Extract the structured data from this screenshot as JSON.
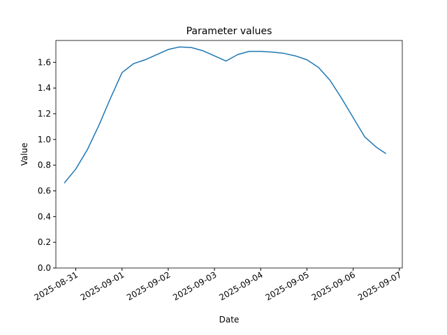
{
  "chart_data": {
    "type": "line",
    "title": "Parameter values",
    "xlabel": "Date",
    "ylabel": "Value",
    "x": [
      "2025-08-30T18:00",
      "2025-08-31T00:00",
      "2025-08-31T06:00",
      "2025-08-31T12:00",
      "2025-08-31T18:00",
      "2025-09-01T00:00",
      "2025-09-01T06:00",
      "2025-09-01T12:00",
      "2025-09-01T18:00",
      "2025-09-02T00:00",
      "2025-09-02T06:00",
      "2025-09-02T12:00",
      "2025-09-02T18:00",
      "2025-09-03T00:00",
      "2025-09-03T06:00",
      "2025-09-03T12:00",
      "2025-09-03T18:00",
      "2025-09-04T00:00",
      "2025-09-04T06:00",
      "2025-09-04T12:00",
      "2025-09-04T18:00",
      "2025-09-05T00:00",
      "2025-09-05T06:00",
      "2025-09-05T12:00",
      "2025-09-05T18:00",
      "2025-09-06T00:00",
      "2025-09-06T06:00",
      "2025-09-06T12:00",
      "2025-09-06T17:00"
    ],
    "series": [
      {
        "name": "Value",
        "color": "#1f77b4",
        "values": [
          0.66,
          0.77,
          0.92,
          1.11,
          1.32,
          1.52,
          1.59,
          1.62,
          1.66,
          1.7,
          1.72,
          1.715,
          1.69,
          1.65,
          1.61,
          1.66,
          1.685,
          1.685,
          1.68,
          1.67,
          1.65,
          1.62,
          1.56,
          1.46,
          1.32,
          1.17,
          1.02,
          0.94,
          0.89
        ]
      }
    ],
    "xlim": [
      "2025-08-30T13:40",
      "2025-09-07T01:30"
    ],
    "xticks": [
      "2025-08-31",
      "2025-09-01",
      "2025-09-02",
      "2025-09-03",
      "2025-09-04",
      "2025-09-05",
      "2025-09-06",
      "2025-09-07"
    ],
    "ylim": [
      0,
      1.77
    ],
    "yticks": [
      {
        "value": 0,
        "label": "0.0"
      },
      {
        "value": 0.2,
        "label": "0.2"
      },
      {
        "value": 0.4,
        "label": "0.4"
      },
      {
        "value": 0.6,
        "label": "0.6"
      },
      {
        "value": 0.8,
        "label": "0.8"
      },
      {
        "value": 1.0,
        "label": "1.0"
      },
      {
        "value": 1.2,
        "label": "1.2"
      },
      {
        "value": 1.4,
        "label": "1.4"
      },
      {
        "value": 1.6,
        "label": "1.6"
      }
    ],
    "grid": false
  }
}
